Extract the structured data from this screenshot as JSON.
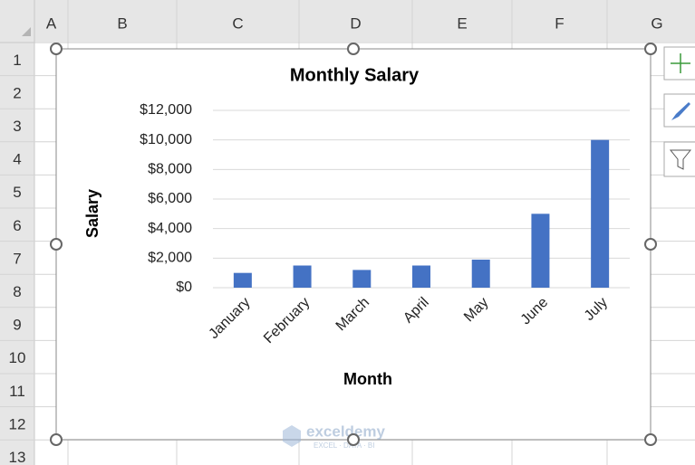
{
  "spreadsheet": {
    "columns": [
      "A",
      "B",
      "C",
      "D",
      "E",
      "F",
      "G"
    ],
    "rows": [
      "1",
      "2",
      "3",
      "4",
      "5",
      "6",
      "7",
      "8",
      "9",
      "10",
      "11",
      "12",
      "13"
    ]
  },
  "watermark": {
    "brand": "exceldemy",
    "tagline": "EXCEL · DATA · BI"
  },
  "chart_data": {
    "type": "bar",
    "title": "Monthly Salary",
    "x_label": "Month",
    "y_label": "Salary",
    "categories": [
      "January",
      "February",
      "March",
      "April",
      "May",
      "June",
      "July"
    ],
    "values": [
      1000,
      1500,
      1200,
      1500,
      1900,
      5000,
      10000
    ],
    "color": "#4472c4",
    "ylim": [
      0,
      12000
    ],
    "yticks": [
      {
        "value": 0,
        "label": "$0"
      },
      {
        "value": 2000,
        "label": "$2,000"
      },
      {
        "value": 4000,
        "label": "$4,000"
      },
      {
        "value": 6000,
        "label": "$6,000"
      },
      {
        "value": 8000,
        "label": "$8,000"
      },
      {
        "value": 10000,
        "label": "$10,000"
      },
      {
        "value": 12000,
        "label": "$12,000"
      }
    ],
    "grid": true
  }
}
